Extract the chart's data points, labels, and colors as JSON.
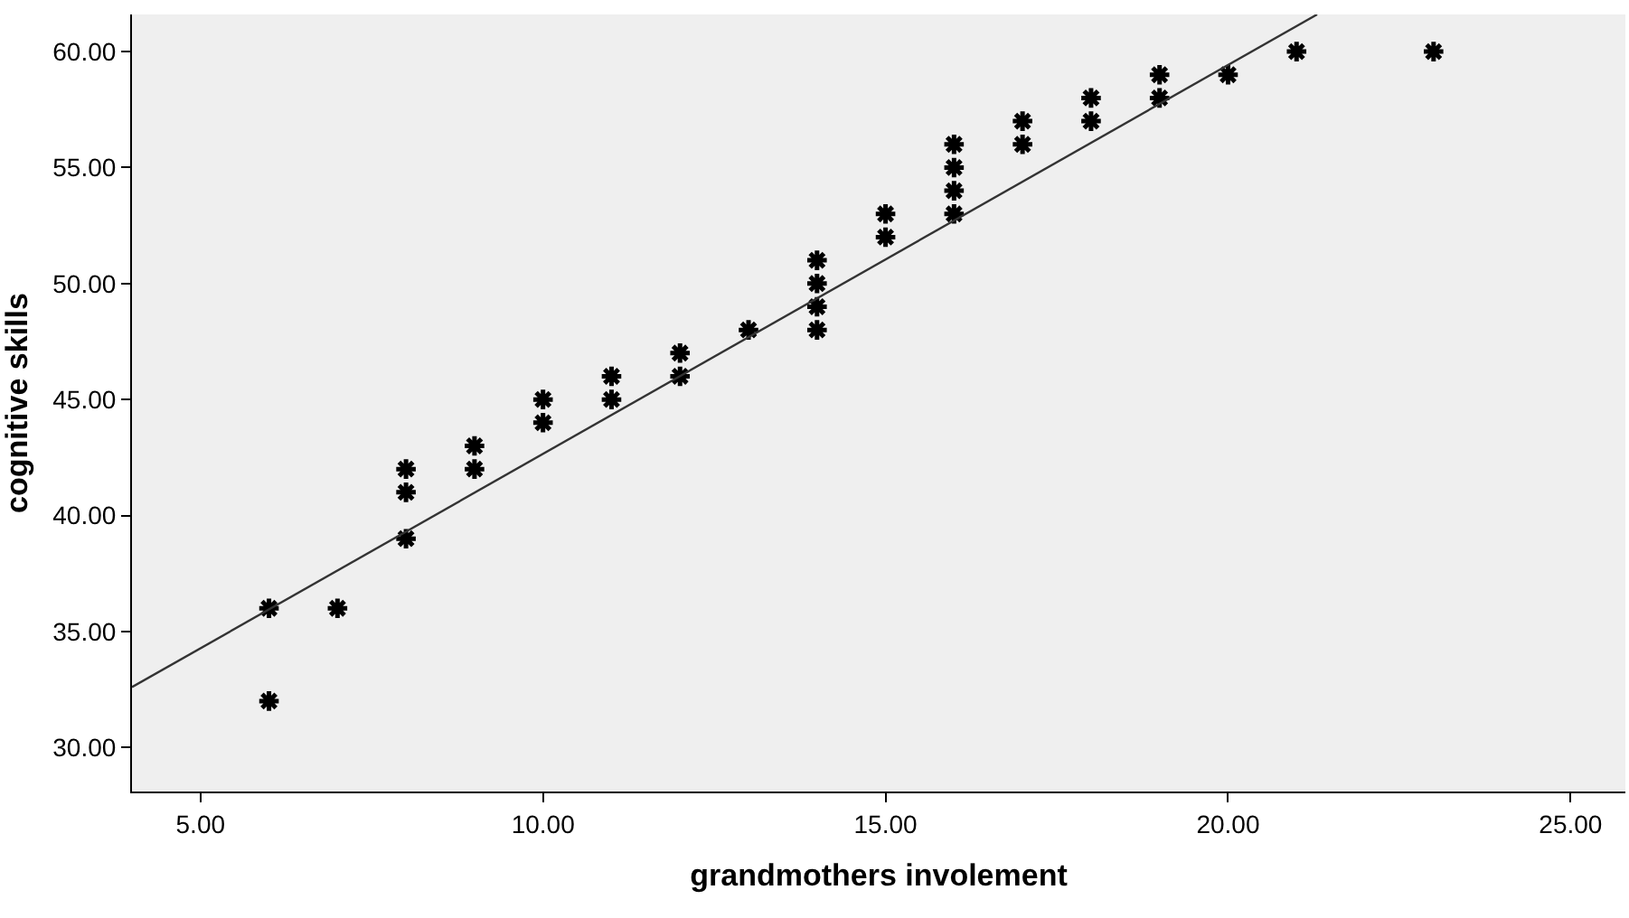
{
  "chart_data": {
    "type": "scatter",
    "xlabel": "grandmothers involement",
    "ylabel": "cognitive skills",
    "xlim": [
      4,
      25.8
    ],
    "ylim": [
      28.1,
      61.6
    ],
    "xticks": [
      {
        "value": 5,
        "label": "5.00"
      },
      {
        "value": 10,
        "label": "10.00"
      },
      {
        "value": 15,
        "label": "15.00"
      },
      {
        "value": 20,
        "label": "20.00"
      },
      {
        "value": 25,
        "label": "25.00"
      }
    ],
    "yticks": [
      {
        "value": 30,
        "label": "30.00"
      },
      {
        "value": 35,
        "label": "35.00"
      },
      {
        "value": 40,
        "label": "40.00"
      },
      {
        "value": 45,
        "label": "45.00"
      },
      {
        "value": 50,
        "label": "50.00"
      },
      {
        "value": 55,
        "label": "55.00"
      },
      {
        "value": 60,
        "label": "60.00"
      }
    ],
    "grid": false,
    "marker": "cross",
    "series": [
      {
        "color": "#000000",
        "x": [
          6,
          6,
          7,
          8,
          8,
          8,
          9,
          9,
          10,
          10,
          11,
          11,
          12,
          12,
          13,
          14,
          14,
          14,
          14,
          15,
          15,
          16,
          16,
          16,
          16,
          17,
          17,
          18,
          18,
          19,
          19,
          20,
          21,
          23
        ],
        "values": [
          36,
          32,
          36,
          42,
          41,
          39,
          43,
          42,
          45,
          44,
          46,
          45,
          47,
          46,
          48,
          51,
          50,
          49,
          48,
          53,
          52,
          56,
          55,
          54,
          53,
          57,
          56,
          58,
          57,
          59,
          58,
          59,
          60,
          60
        ]
      },
      {
        "type": "line",
        "marker": "none",
        "color": "#333333",
        "line_style": "solid",
        "x": [
          4,
          21.3
        ],
        "values": [
          32.6,
          61.6
        ]
      }
    ]
  }
}
